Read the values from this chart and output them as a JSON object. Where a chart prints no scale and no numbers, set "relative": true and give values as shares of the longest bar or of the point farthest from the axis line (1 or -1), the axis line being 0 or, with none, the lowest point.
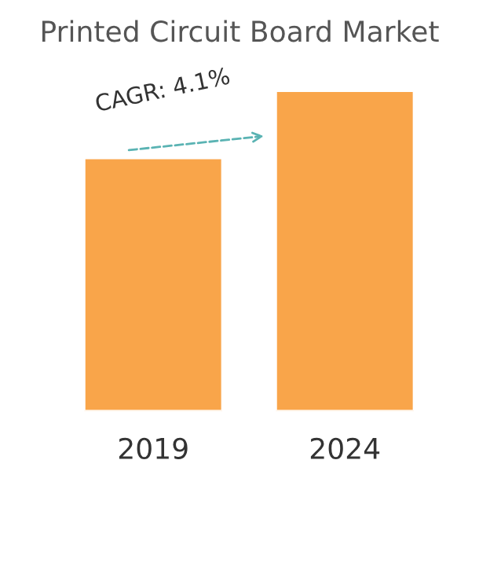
{
  "chart_data": {
    "type": "bar",
    "title": "Printed Circuit Board Market",
    "categories": [
      "2019",
      "2024"
    ],
    "values": [
      0.79,
      1
    ],
    "color": "#f9a54a",
    "relative": true,
    "annotations": [
      "CAGR: 4.1%"
    ]
  }
}
